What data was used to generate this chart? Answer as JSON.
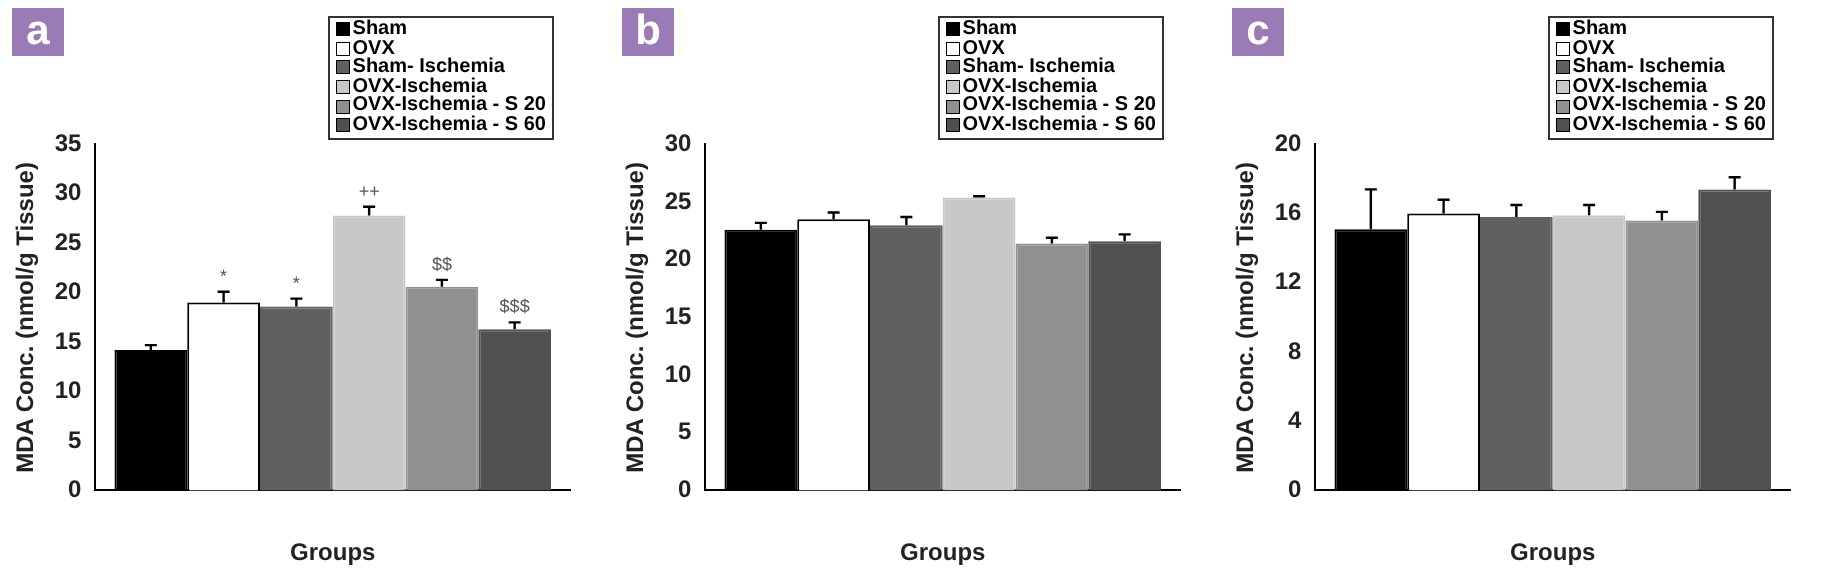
{
  "chart_data": [
    {
      "type": "bar",
      "title": "a",
      "xlabel": "Groups",
      "ylabel": "MDA Conc. (nmol/g Tissue)",
      "categories": [
        null
      ],
      "ylim": [
        0,
        35
      ],
      "yticks": [
        0,
        5,
        10,
        15,
        20,
        25,
        30,
        35
      ],
      "grid": false,
      "legend": "top right",
      "series": [
        {
          "name": "Sham",
          "color": "#000000",
          "values": [
            14.2
          ],
          "errors": [
            0.5
          ]
        },
        {
          "name": "OVX",
          "color": "#ffffff",
          "values": [
            19.0
          ],
          "errors": [
            1.1
          ]
        },
        {
          "name": "Sham- Ischemia",
          "color": "#606060",
          "values": [
            18.6
          ],
          "errors": [
            0.8
          ]
        },
        {
          "name": "OVX-Ischemia",
          "color": "#c8c8c8",
          "values": [
            27.8
          ],
          "errors": [
            0.9
          ]
        },
        {
          "name": "OVX-Ischemia - S 20",
          "color": "#909090",
          "values": [
            20.6
          ],
          "errors": [
            0.7
          ]
        },
        {
          "name": "OVX-Ischemia - S 60",
          "color": "#505050",
          "values": [
            16.3
          ],
          "errors": [
            0.7
          ]
        }
      ],
      "annotations": [
        {
          "text": "*",
          "y": 20.1
        },
        {
          "text": "*",
          "y": 19.4
        },
        {
          "text": "++",
          "y": 28.7
        },
        {
          "text": "$$",
          "y": 21.3
        },
        {
          "text": "$$$",
          "y": 17.0
        }
      ]
    },
    {
      "type": "bar",
      "title": "b",
      "xlabel": "Groups",
      "ylabel": "MDA Conc. (nmol/g Tissue)",
      "categories": [
        null
      ],
      "ylim": [
        0,
        30
      ],
      "yticks": [
        0,
        5,
        10,
        15,
        20,
        25,
        30
      ],
      "grid": false,
      "legend": "top right",
      "series": [
        {
          "name": "Sham",
          "color": "#000000",
          "values": [
            22.6
          ],
          "errors": [
            0.6
          ]
        },
        {
          "name": "OVX",
          "color": "#ffffff",
          "values": [
            23.5
          ],
          "errors": [
            0.6
          ]
        },
        {
          "name": "Sham- Ischemia",
          "color": "#606060",
          "values": [
            23.0
          ],
          "errors": [
            0.7
          ]
        },
        {
          "name": "OVX-Ischemia",
          "color": "#c8c8c8",
          "values": [
            25.4
          ],
          "errors": [
            0.1
          ]
        },
        {
          "name": "OVX-Ischemia - S 20",
          "color": "#909090",
          "values": [
            21.4
          ],
          "errors": [
            0.5
          ]
        },
        {
          "name": "OVX-Ischemia - S 60",
          "color": "#505050",
          "values": [
            21.6
          ],
          "errors": [
            0.6
          ]
        }
      ]
    },
    {
      "type": "bar",
      "title": "c",
      "xlabel": "Groups",
      "ylabel": "MDA Conc. (nmol/g Tissue)",
      "categories": [
        null
      ],
      "ylim": [
        0,
        20
      ],
      "yticks": [
        0,
        4,
        8,
        12,
        16,
        20
      ],
      "grid": false,
      "legend": "top right",
      "series": [
        {
          "name": "Sham",
          "color": "#000000",
          "values": [
            15.1
          ],
          "errors": [
            2.3
          ]
        },
        {
          "name": "OVX",
          "color": "#ffffff",
          "values": [
            16.0
          ],
          "errors": [
            0.8
          ]
        },
        {
          "name": "Sham- Ischemia",
          "color": "#606060",
          "values": [
            15.8
          ],
          "errors": [
            0.7
          ]
        },
        {
          "name": "OVX-Ischemia",
          "color": "#c8c8c8",
          "values": [
            15.9
          ],
          "errors": [
            0.6
          ]
        },
        {
          "name": "OVX-Ischemia - S 20",
          "color": "#909090",
          "values": [
            15.6
          ],
          "errors": [
            0.5
          ]
        },
        {
          "name": "OVX-Ischemia - S 60",
          "color": "#505050",
          "values": [
            17.4
          ],
          "errors": [
            0.7
          ]
        }
      ]
    }
  ]
}
